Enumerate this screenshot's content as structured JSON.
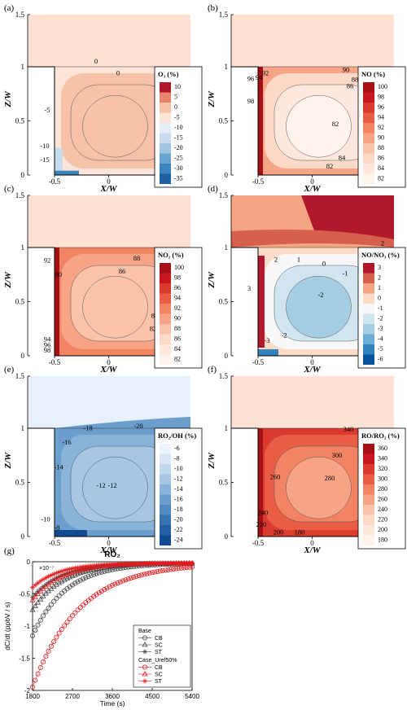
{
  "figure": {
    "panels": [
      {
        "letter": "(a)",
        "legend_title": "O₃ (%)",
        "legend_labels": [
          "10",
          "5",
          "0",
          "-5",
          "-10",
          "-15",
          "-20",
          "-25",
          "-30",
          "-35"
        ],
        "colors": [
          "#b2182b",
          "#e7846a",
          "#f7c3a8",
          "#fbe5d8",
          "#e5eef6",
          "#c9dcee",
          "#a0c5e2",
          "#6aa5d1",
          "#3a84c0",
          "#1f5fa3"
        ],
        "contour_labels": [
          "0",
          "0",
          "-5",
          "-10",
          "-15"
        ]
      },
      {
        "letter": "(b)",
        "legend_title": "NO (%)",
        "legend_labels": [
          "100",
          "98",
          "96",
          "94",
          "92",
          "90",
          "88",
          "86",
          "84",
          "82"
        ],
        "colors": [
          "#a50f15",
          "#c7171f",
          "#db3a2f",
          "#ea5d45",
          "#f28463",
          "#f7a486",
          "#fbc2aa",
          "#fdd9c8",
          "#fee8dd",
          "#fff3ec"
        ],
        "contour_labels": [
          "92",
          "96",
          "94",
          "98",
          "90",
          "88",
          "86",
          "84",
          "82",
          "84",
          "82"
        ]
      },
      {
        "letter": "(c)",
        "legend_title": "NO₂ (%)",
        "legend_labels": [
          "100",
          "98",
          "96",
          "94",
          "92",
          "90",
          "88",
          "86",
          "84",
          "82"
        ],
        "colors": [
          "#a50f15",
          "#c7171f",
          "#db3a2f",
          "#ea5d45",
          "#f28463",
          "#f7a486",
          "#fbc2aa",
          "#fdd9c8",
          "#fee8dd",
          "#fff3ec"
        ],
        "contour_labels": [
          "92",
          "88",
          "90",
          "86",
          "84",
          "82",
          "94",
          "96",
          "98"
        ]
      },
      {
        "letter": "(d)",
        "legend_title": "NO/NO₃ (%)",
        "legend_labels": [
          "3",
          "2",
          "1",
          "0",
          "-1",
          "-2",
          "-3",
          "-4",
          "-5",
          "-6"
        ],
        "colors": [
          "#b2182b",
          "#d6604d",
          "#f4a582",
          "#fddbc7",
          "#f7f7f7",
          "#d1e5f0",
          "#a6cee3",
          "#6baed6",
          "#3182bd",
          "#08519c"
        ],
        "contour_labels": [
          "2",
          "2",
          "1",
          "0",
          "-1",
          "3",
          "-2",
          "-2",
          "-3"
        ]
      },
      {
        "letter": "(e)",
        "legend_title": "RO₂/OH (%)",
        "legend_labels": [
          "-6",
          "-8",
          "-10",
          "-12",
          "-14",
          "-16",
          "-18",
          "-20",
          "-22",
          "-24"
        ],
        "colors": [
          "#eef4fb",
          "#d8e6f4",
          "#c1d7ec",
          "#a6c6e3",
          "#8ab3d9",
          "#6c9ecd",
          "#5189c0",
          "#3873b2",
          "#245ea3",
          "#134b93"
        ],
        "contour_labels": [
          "-18",
          "-20",
          "-16",
          "-14",
          "-12",
          "-12",
          "-10",
          "-8"
        ]
      },
      {
        "letter": "(f)",
        "legend_title": "RO/RO₂ (%)",
        "legend_labels": [
          "360",
          "340",
          "320",
          "300",
          "280",
          "260",
          "240",
          "220",
          "200",
          "180"
        ],
        "colors": [
          "#a50f15",
          "#c7171f",
          "#db3a2f",
          "#ea5d45",
          "#f28463",
          "#f7a486",
          "#fbc2aa",
          "#fdd9c8",
          "#fee8dd",
          "#fff3ec"
        ],
        "contour_labels": [
          "340",
          "320",
          "300",
          "260",
          "280",
          "240",
          "220",
          "200",
          "180"
        ]
      }
    ],
    "axis": {
      "xlabel": "X/W",
      "ylabel": "Z/W",
      "xticks": [
        "-0.5",
        "0",
        "0.5"
      ],
      "yticks": [
        "1.5",
        "1",
        "0.5",
        "0"
      ]
    },
    "panel_g": {
      "letter": "(g)"
    }
  },
  "chart_data": {
    "type": "scatter",
    "title": "RO₂",
    "xlabel": "Time (s)",
    "ylabel": "dC/dt (ppbV / s)",
    "y_multiplier": "×10⁻⁷",
    "xlim": [
      1800,
      5400
    ],
    "ylim": [
      -2,
      0
    ],
    "xticks": [
      1800,
      2700,
      3600,
      4500,
      5400
    ],
    "yticks": [
      0,
      -0.5,
      -1,
      -1.5,
      -2
    ],
    "ytick_labels": [
      "0",
      "-0.5",
      "-1",
      "-1.5",
      "-2"
    ],
    "legend": {
      "group1": "Base",
      "group2": "Case_Uref50%",
      "placement": "bottom-right"
    },
    "series": [
      {
        "name": "CB",
        "group": "Base",
        "color": "#444444",
        "marker": "circle",
        "start": -1.15,
        "tau": 750
      },
      {
        "name": "SC",
        "group": "Base",
        "color": "#444444",
        "marker": "triangle",
        "start": -0.75,
        "tau": 700
      },
      {
        "name": "ST",
        "group": "Base",
        "color": "#444444",
        "marker": "star",
        "start": -0.55,
        "tau": 650
      },
      {
        "name": "CB",
        "group": "Case_Uref50%",
        "color": "#e41a1c",
        "marker": "circle",
        "start": -1.95,
        "tau": 1050
      },
      {
        "name": "SC",
        "group": "Case_Uref50%",
        "color": "#e41a1c",
        "marker": "triangle",
        "start": -0.6,
        "tau": 650
      },
      {
        "name": "ST",
        "group": "Case_Uref50%",
        "color": "#e41a1c",
        "marker": "star",
        "start": -0.4,
        "tau": 600
      }
    ]
  }
}
